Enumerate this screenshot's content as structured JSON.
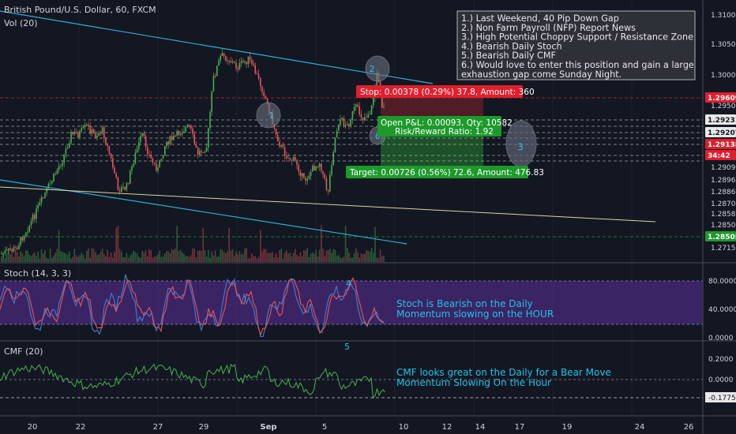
{
  "header": {
    "symbol_title": "British Pound/U.S. Dollar, 60, FXCM",
    "volume_label": "Vol (20)",
    "stoch_label": "Stoch (14, 3, 3)",
    "cmf_label": "CMF (20)"
  },
  "notes": {
    "lines": [
      "1.) Last Weekend, 40 Pip Down Gap",
      "2.) Non Farm Payroll (NFP) Report News",
      "3.) High Potential Choppy Support / Resistance Zone",
      "4.) Bearish Daily Stoch",
      "5.) Bearish Daily CMF",
      "6.) Would love to enter this position and gain a large",
      "exhaustion gap come Sunday Night."
    ]
  },
  "position": {
    "stop_label": "Stop: 0.00378 (0.29%) 37.8, Amount: 360",
    "open_label": "Open P&L: 0.00093, Qty: 10582",
    "rr_label": "Risk/Reward Ratio: 1.92",
    "target_label": "Target: 0.00726 (0.56%) 72.6, Amount: 476.83"
  },
  "markers": {
    "m1": "1",
    "m2": "2",
    "m3": "3",
    "m4": "4",
    "m5": "5",
    "m6": "6"
  },
  "annotations": {
    "stoch_text_1": "Stoch is Bearish on the Daily",
    "stoch_text_2": "Momentum slowing on the HOUR",
    "cmf_text_1": "CMF looks great on the Daily for a Bear Move",
    "cmf_text_2": "Momentum Slowing On the Hour"
  },
  "colors": {
    "background": "#131722",
    "up_candle": "#4caf50",
    "down_candle": "#e9545c",
    "trendline": "#2ab0d8",
    "support_line": "#d9d69a",
    "stoch_k": "#3f7fd6",
    "stoch_d": "#e9545c",
    "stoch_band": "#4a2a7a",
    "cmf_line": "#4caf50",
    "annotation_text": "#22c3e6",
    "stop_zone": "#5c1f28",
    "target_zone": "#1f5c2a",
    "stop_label": "#e01e2d",
    "target_label": "#1d9a2b"
  },
  "chart_data": [
    {
      "type": "candlestick",
      "title": "British Pound/U.S. Dollar, 60, FXCM",
      "x_ticks": [
        "20",
        "22",
        "27",
        "29",
        "Sep",
        "5",
        "10",
        "12",
        "14",
        "17",
        "19",
        "24",
        "26"
      ],
      "y_ticks": [
        "1.31000",
        "1.30500",
        "1.30000",
        "1.29500",
        "1.29098",
        "1.28968",
        "1.28860",
        "1.28700",
        "1.28588",
        "1.28501",
        "1.27150"
      ],
      "price_badges": [
        {
          "value": "1.29609",
          "color": "#e01e2d"
        },
        {
          "value": "1.29231",
          "color": "#e8e8e8"
        },
        {
          "value": "1.29207",
          "color": "#e8e8e8"
        },
        {
          "value": "1.29138",
          "color": "#e01e2d"
        },
        {
          "value": "34:42",
          "color": "#e01e2d"
        },
        {
          "value": "1.28505",
          "color": "#1d9a2b"
        }
      ],
      "ylim": [
        1.2695,
        1.3125
      ]
    },
    {
      "type": "line",
      "title": "Stoch (14, 3, 3)",
      "y_ticks": [
        "80.0000",
        "40.0000",
        "0.0000"
      ],
      "band": [
        20,
        80
      ],
      "ylim": [
        0,
        100
      ]
    },
    {
      "type": "line",
      "title": "CMF (20)",
      "y_ticks": [
        "0.2000",
        "0.0000",
        "-0.1775"
      ],
      "last_value": -0.1775,
      "ylim": [
        -0.3,
        0.3
      ]
    }
  ]
}
